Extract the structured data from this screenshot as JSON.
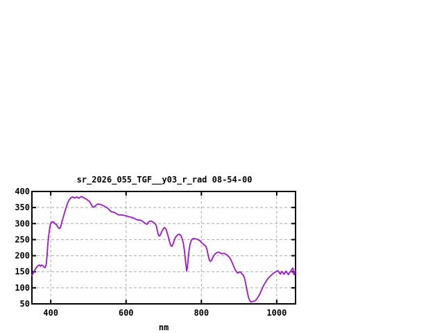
{
  "window": {
    "background": "#ffffff"
  },
  "colors": {
    "line": "#a010e0",
    "grid_line": "#ababab",
    "plot_border": "#000000",
    "tick_text": "#000000",
    "background": "#ffffff"
  },
  "chart_data": {
    "type": "line",
    "title": "sr_2026_055_TGF__y03_r_rad 08-54-00",
    "xlabel": "nm",
    "ylabel": "",
    "xlim": [
      350,
      1050
    ],
    "ylim": [
      50,
      400
    ],
    "xticks": [
      400,
      600,
      800,
      1000
    ],
    "yticks": [
      50,
      100,
      150,
      200,
      250,
      300,
      350,
      400
    ],
    "grid": true,
    "legend": "none",
    "series": [
      {
        "name": "sr_2026_055_TGF__y03_r_rad",
        "color": "#a010e0",
        "x": [
          350,
          354,
          358,
          362,
          366,
          370,
          373,
          376,
          379,
          382,
          385,
          388,
          390,
          392,
          394,
          396,
          398,
          400,
          403,
          406,
          409,
          412,
          415,
          418,
          421,
          424,
          426,
          428,
          430,
          433,
          436,
          439,
          442,
          445,
          448,
          451,
          454,
          457,
          460,
          463,
          466,
          469,
          472,
          475,
          478,
          481,
          484,
          487,
          490,
          493,
          496,
          499,
          502,
          505,
          508,
          511,
          514,
          517,
          520,
          523,
          526,
          529,
          532,
          535,
          538,
          541,
          545,
          549,
          553,
          557,
          561,
          565,
          569,
          573,
          577,
          581,
          585,
          589,
          593,
          597,
          601,
          605,
          609,
          613,
          617,
          621,
          625,
          629,
          633,
          637,
          641,
          645,
          649,
          653,
          656,
          659,
          662,
          665,
          668,
          671,
          674,
          677,
          680,
          683,
          686,
          689,
          692,
          695,
          698,
          701,
          704,
          707,
          710,
          713,
          716,
          719,
          722,
          725,
          728,
          731,
          734,
          737,
          740,
          743,
          746,
          749,
          752,
          755,
          758,
          761,
          763,
          765,
          767,
          770,
          773,
          776,
          779,
          782,
          785,
          788,
          791,
          794,
          797,
          800,
          803,
          806,
          809,
          812,
          815,
          818,
          821,
          824,
          827,
          830,
          833,
          836,
          839,
          842,
          845,
          848,
          851,
          854,
          857,
          860,
          863,
          866,
          869,
          872,
          875,
          878,
          881,
          884,
          887,
          890,
          893,
          896,
          899,
          902,
          905,
          908,
          911,
          914,
          917,
          920,
          923,
          926,
          929,
          932,
          935,
          938,
          941,
          944,
          947,
          950,
          953,
          956,
          959,
          962,
          965,
          968,
          971,
          974,
          977,
          980,
          983,
          986,
          989,
          992,
          995,
          998,
          1001,
          1004,
          1007,
          1010,
          1013,
          1016,
          1019,
          1022,
          1025,
          1028,
          1031,
          1034,
          1037,
          1040,
          1043,
          1045,
          1047,
          1050
        ],
        "values": [
          138,
          147,
          156,
          163,
          169,
          171,
          167,
          171,
          169,
          165,
          163,
          172,
          196,
          232,
          257,
          276,
          292,
          301,
          305,
          306,
          303,
          299,
          297,
          291,
          286,
          285,
          289,
          297,
          307,
          319,
          331,
          343,
          354,
          364,
          372,
          377,
          381,
          383,
          382,
          380,
          381,
          383,
          381,
          379,
          382,
          384,
          383,
          381,
          379,
          377,
          375,
          372,
          370,
          365,
          358,
          353,
          351,
          353,
          357,
          360,
          361,
          360,
          360,
          358,
          356,
          355,
          352,
          350,
          346,
          341,
          337,
          336,
          335,
          332,
          329,
          327,
          327,
          327,
          326,
          325,
          324,
          322,
          321,
          320,
          318,
          317,
          314,
          312,
          311,
          311,
          309,
          306,
          302,
          299,
          298,
          303,
          307,
          308,
          307,
          305,
          303,
          300,
          295,
          278,
          264,
          261,
          267,
          276,
          282,
          287,
          286,
          280,
          268,
          255,
          241,
          231,
          229,
          237,
          248,
          257,
          261,
          265,
          267,
          266,
          262,
          252,
          240,
          216,
          182,
          152,
          164,
          190,
          215,
          236,
          247,
          252,
          254,
          253,
          252,
          252,
          250,
          248,
          246,
          241,
          238,
          235,
          232,
          229,
          219,
          201,
          187,
          182,
          185,
          193,
          200,
          205,
          208,
          210,
          211,
          210,
          208,
          206,
          207,
          207,
          206,
          204,
          201,
          198,
          194,
          188,
          180,
          172,
          164,
          156,
          150,
          146,
          147,
          150,
          148,
          143,
          140,
          132,
          117,
          99,
          81,
          67,
          59,
          56,
          57,
          58,
          59,
          61,
          65,
          70,
          76,
          83,
          91,
          99,
          107,
          113,
          118,
          124,
          129,
          133,
          136,
          140,
          143,
          146,
          148,
          150,
          152,
          153,
          146,
          143,
          151,
          149,
          142,
          147,
          152,
          146,
          141,
          147,
          151,
          158,
          162,
          143,
          141,
          153
        ]
      }
    ]
  }
}
